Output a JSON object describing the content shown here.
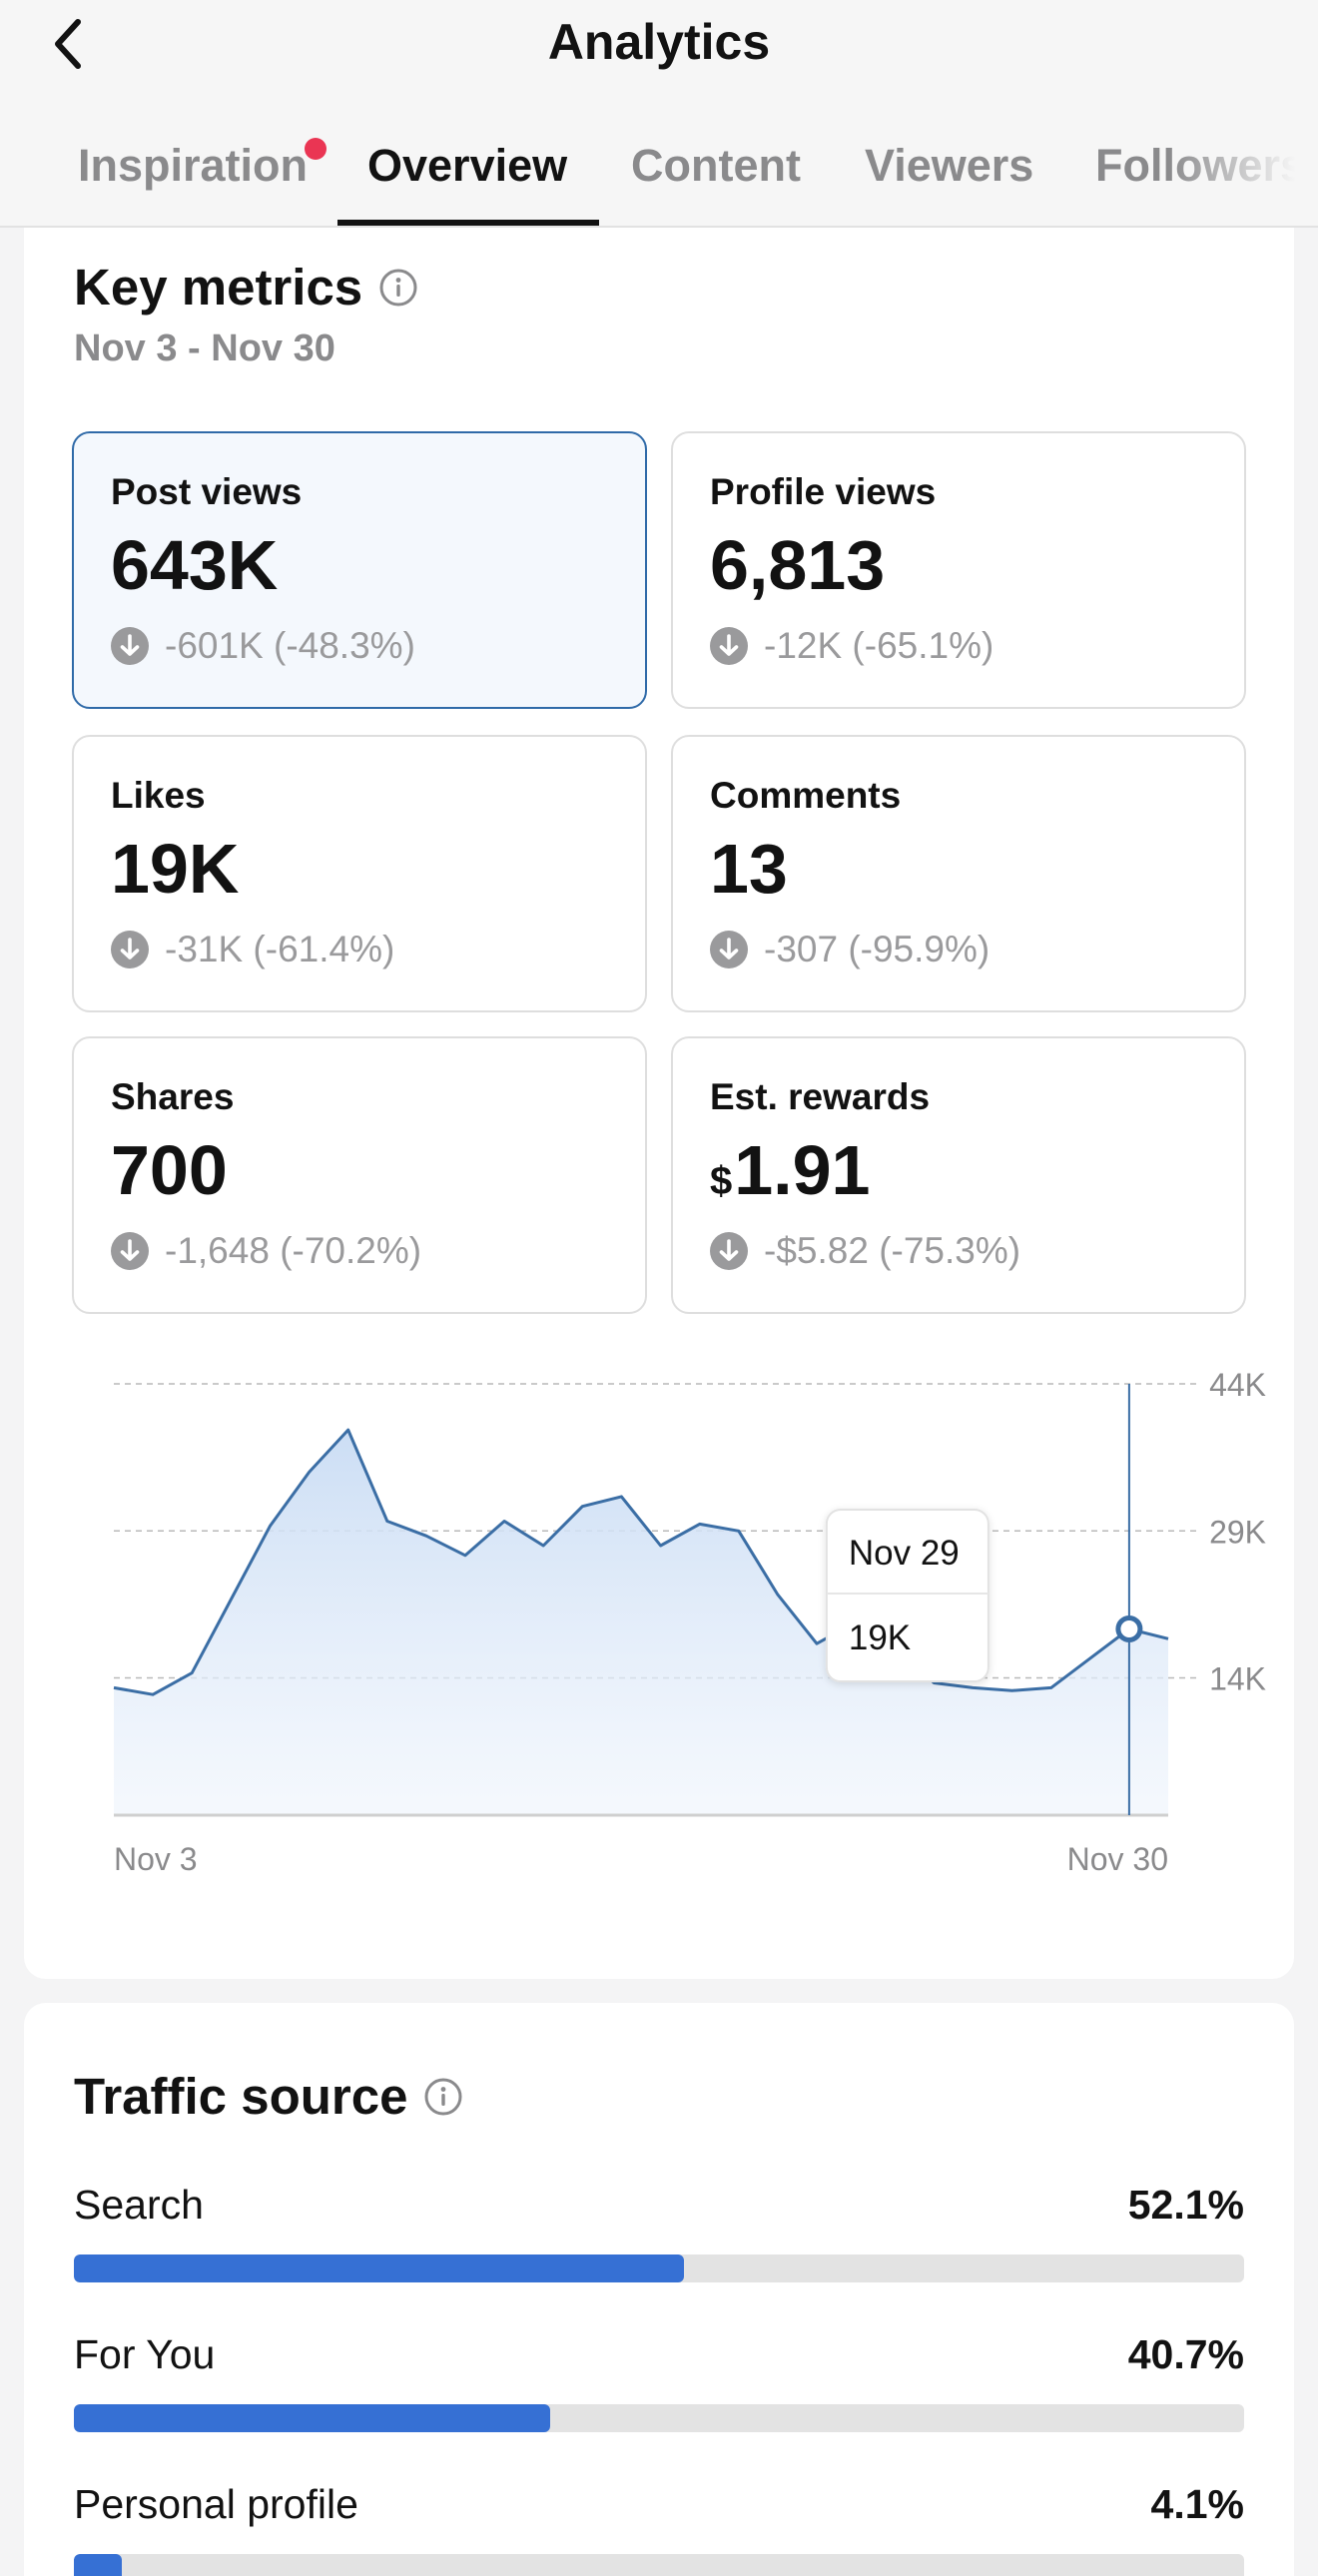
{
  "header": {
    "title": "Analytics",
    "tabs": [
      {
        "label": "Inspiration",
        "has_notification_dot": true
      },
      {
        "label": "Overview",
        "active": true
      },
      {
        "label": "Content"
      },
      {
        "label": "Viewers"
      },
      {
        "label": "Followers"
      }
    ]
  },
  "key_metrics": {
    "title": "Key metrics",
    "date_range": "Nov 3 - Nov 30",
    "metrics": [
      {
        "label": "Post views",
        "value": "643K",
        "change": "-601K (-48.3%)",
        "selected": true
      },
      {
        "label": "Profile views",
        "value": "6,813",
        "change": "-12K (-65.1%)"
      },
      {
        "label": "Likes",
        "value": "19K",
        "change": "-31K (-61.4%)"
      },
      {
        "label": "Comments",
        "value": "13",
        "change": "-307 (-95.9%)"
      },
      {
        "label": "Shares",
        "value": "700",
        "change": "-1,648 (-70.2%)"
      },
      {
        "label": "Est. rewards",
        "currency": "$",
        "value": "1.91",
        "change": "-$5.82 (-75.3%)"
      }
    ]
  },
  "chart_data": {
    "type": "area",
    "x_start_label": "Nov 3",
    "x_end_label": "Nov 30",
    "y_ticks": [
      "44K",
      "29K",
      "14K"
    ],
    "y_tick_values": [
      44000,
      29000,
      14000
    ],
    "ylim": [
      0,
      44000
    ],
    "grid": "horizontal dashed",
    "x": [
      "Nov 3",
      "Nov 4",
      "Nov 5",
      "Nov 6",
      "Nov 7",
      "Nov 8",
      "Nov 9",
      "Nov 10",
      "Nov 11",
      "Nov 12",
      "Nov 13",
      "Nov 14",
      "Nov 15",
      "Nov 16",
      "Nov 17",
      "Nov 18",
      "Nov 19",
      "Nov 20",
      "Nov 21",
      "Nov 22",
      "Nov 23",
      "Nov 24",
      "Nov 25",
      "Nov 26",
      "Nov 27",
      "Nov 28",
      "Nov 29",
      "Nov 30"
    ],
    "values": [
      13000,
      12300,
      14500,
      22000,
      29500,
      35000,
      39300,
      30000,
      28500,
      26500,
      30000,
      27500,
      31500,
      32500,
      27500,
      29700,
      29000,
      22500,
      17500,
      19700,
      17500,
      13500,
      13000,
      12700,
      13000,
      16000,
      19000,
      18000
    ],
    "tooltip": {
      "date": "Nov 29",
      "value": "19K"
    },
    "line_color": "#3b6ea5"
  },
  "traffic_source": {
    "title": "Traffic source",
    "items": [
      {
        "label": "Search",
        "percent": "52.1%",
        "fraction": 0.521
      },
      {
        "label": "For You",
        "percent": "40.7%",
        "fraction": 0.407
      },
      {
        "label": "Personal profile",
        "percent": "4.1%",
        "fraction": 0.041
      }
    ]
  },
  "colors": {
    "accent_blue": "#3670d4",
    "notification_dot": "#ea3553",
    "selected_border": "#2f6aa8"
  }
}
